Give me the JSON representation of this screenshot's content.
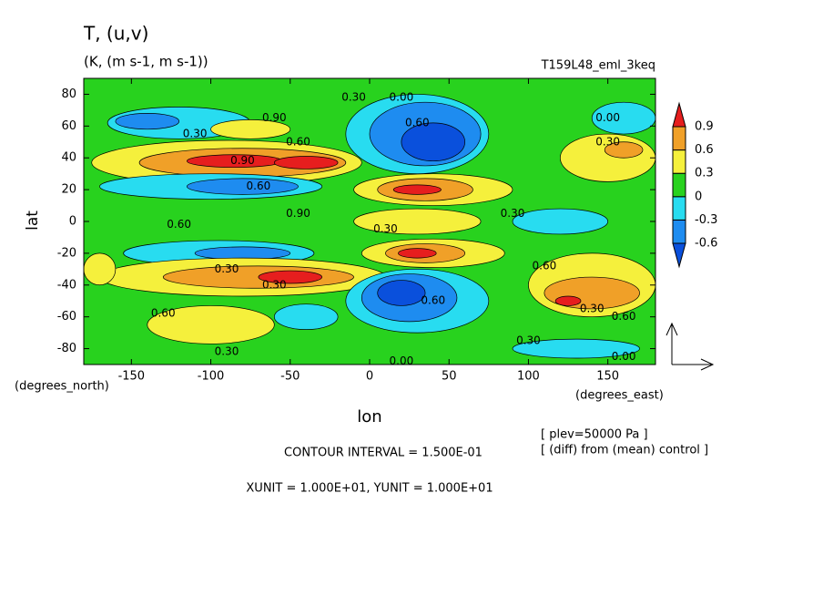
{
  "chart_data": {
    "type": "contourf",
    "title": "T, (u,v)",
    "subtitle": "(K, (m s-1, m s-1))",
    "run_label": "T159L48_eml_3keq",
    "xlabel": "lon",
    "ylabel": "lat",
    "xunits": "(degrees_east)",
    "yunits": "(degrees_north)",
    "notes": [
      "[ plev=50000 Pa ]",
      "[ (diff) from (mean) control ]"
    ],
    "contour_interval": "CONTOUR INTERVAL = 1.500E-01",
    "unit_line": "XUNIT = 1.000E+01, YUNIT = 1.000E+01",
    "xlim": [
      -180,
      180
    ],
    "ylim": [
      -90,
      90
    ],
    "xticks": [
      -150,
      -100,
      -50,
      0,
      50,
      100,
      150
    ],
    "yticks": [
      80,
      60,
      40,
      20,
      0,
      -20,
      -40,
      -60,
      -80
    ],
    "levels": [
      -0.6,
      -0.3,
      0,
      0.3,
      0.6,
      0.9
    ],
    "colors": [
      "#0a50dc",
      "#1e8cf0",
      "#28dcf0",
      "#28d21e",
      "#f5f03c",
      "#f0a028",
      "#e61e1e"
    ],
    "regions": {
      "lon": [
        -90,
        -80,
        -85,
        -40,
        -100,
        -80,
        -120,
        -140,
        -75,
        30,
        35,
        40,
        40,
        35,
        30,
        30,
        -95,
        -80,
        -80,
        -70,
        -50,
        40,
        35,
        30,
        30,
        25,
        20,
        -40,
        -100,
        140,
        140,
        125,
        160,
        150,
        160,
        120,
        130,
        -170
      ],
      "lat": [
        37,
        37,
        38,
        37,
        22,
        22,
        62,
        63,
        58,
        55,
        55,
        50,
        20,
        20,
        20,
        0,
        -20,
        -20,
        -35,
        -35,
        -35,
        -20,
        -20,
        -20,
        -50,
        -48,
        -45,
        -60,
        -65,
        -40,
        -45,
        -50,
        65,
        40,
        45,
        0,
        -80,
        -30
      ],
      "rx": [
        85,
        65,
        30,
        20,
        70,
        35,
        45,
        20,
        25,
        45,
        35,
        20,
        50,
        30,
        15,
        40,
        60,
        30,
        90,
        60,
        20,
        45,
        25,
        12,
        45,
        30,
        15,
        20,
        40,
        40,
        30,
        8,
        20,
        30,
        12,
        30,
        40,
        10
      ],
      "ry": [
        14,
        9,
        4,
        4,
        8,
        5,
        10,
        5,
        6,
        25,
        20,
        12,
        10,
        7,
        3,
        8,
        8,
        4,
        12,
        7,
        4,
        9,
        6,
        3,
        20,
        15,
        8,
        8,
        12,
        20,
        10,
        3,
        10,
        15,
        5,
        8,
        6,
        10
      ],
      "values": [
        0.3,
        0.6,
        0.9,
        0.9,
        -0.3,
        -0.6,
        -0.3,
        -0.6,
        0.3,
        -0.3,
        -0.6,
        -0.75,
        0.3,
        0.6,
        0.9,
        0.3,
        -0.3,
        -0.6,
        0.3,
        0.6,
        0.9,
        0.3,
        0.6,
        0.9,
        -0.3,
        -0.6,
        -0.75,
        -0.3,
        0.3,
        0.3,
        0.6,
        0.9,
        -0.3,
        0.3,
        0.6,
        -0.3,
        -0.3,
        0.3
      ]
    },
    "contour_labels": {
      "lon": [
        -10,
        20,
        30,
        -60,
        -110,
        -45,
        -80,
        -70,
        -45,
        150,
        150,
        -120,
        -90,
        10,
        110,
        -60,
        40,
        160,
        -130,
        140,
        90,
        100,
        160,
        -90,
        20
      ],
      "lat": [
        78,
        78,
        62,
        65,
        55,
        50,
        38,
        22,
        5,
        50,
        65,
        -2,
        -30,
        -5,
        -28,
        -40,
        -50,
        -60,
        -58,
        -55,
        5,
        -75,
        -85,
        -82,
        -88
      ],
      "labels": [
        "0.30",
        "0.00",
        "0.60",
        "0.90",
        "0.30",
        "0.60",
        "0.90",
        "0.60",
        "0.90",
        "0.30",
        "0.00",
        "0.60",
        "0.30",
        "0.30",
        "0.60",
        "0.30",
        "0.60",
        "0.60",
        "0.60",
        "0.30",
        "0.30",
        "0.30",
        "0.00",
        "0.30",
        "0.00"
      ]
    }
  }
}
